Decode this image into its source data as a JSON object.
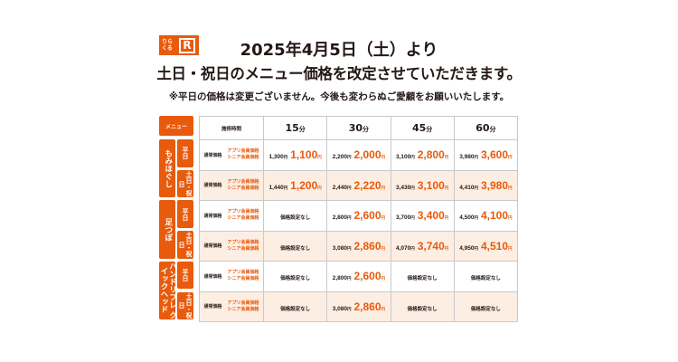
{
  "logo": {
    "text": "りらくる",
    "mark": "R",
    "brand_color": "#e85a0c"
  },
  "heading": {
    "date": "2025年4月5日（土）より",
    "main": "土日・祝日のメニュー価格を改定させていただきます。",
    "note": "※平日の価格は変更ございません。今後も変わらぬご愛顧をお願いいたします。"
  },
  "table": {
    "menu_label": "メニュー",
    "time_label": "施術時間",
    "durations": [
      "15",
      "30",
      "45",
      "60"
    ],
    "minute_unit": "分",
    "yen": "円",
    "regular_label": "通常価格",
    "member_label_1": "アプリ会員価格",
    "member_label_2": "シニア会員価格",
    "no_price": "価格設定なし",
    "categories": [
      {
        "name": "もみほぐし",
        "rows": [
          {
            "day": "平日",
            "cells": [
              {
                "regular": "1,300",
                "member": "1,100"
              },
              {
                "regular": "2,200",
                "member": "2,000"
              },
              {
                "regular": "3,100",
                "member": "2,800"
              },
              {
                "regular": "3,980",
                "member": "3,600"
              }
            ]
          },
          {
            "day": "土日・祝日",
            "cells": [
              {
                "regular": "1,440",
                "member": "1,200"
              },
              {
                "regular": "2,440",
                "member": "2,220"
              },
              {
                "regular": "3,430",
                "member": "3,100"
              },
              {
                "regular": "4,410",
                "member": "3,980"
              }
            ]
          }
        ]
      },
      {
        "name": "足つぼ",
        "rows": [
          {
            "day": "平日",
            "cells": [
              null,
              {
                "regular": "2,800",
                "member": "2,600"
              },
              {
                "regular": "3,700",
                "member": "3,400"
              },
              {
                "regular": "4,500",
                "member": "4,100"
              }
            ]
          },
          {
            "day": "土日・祝日",
            "cells": [
              null,
              {
                "regular": "3,080",
                "member": "2,860"
              },
              {
                "regular": "4,070",
                "member": "3,740"
              },
              {
                "regular": "4,950",
                "member": "4,510"
              }
            ]
          }
        ]
      },
      {
        "name": "ハンドリフレ クイックヘッド",
        "rows": [
          {
            "day": "平日",
            "cells": [
              null,
              {
                "regular": "2,800",
                "member": "2,600"
              },
              null,
              null
            ]
          },
          {
            "day": "土日・祝日",
            "cells": [
              null,
              {
                "regular": "3,080",
                "member": "2,860"
              },
              null,
              null
            ]
          }
        ]
      }
    ]
  }
}
